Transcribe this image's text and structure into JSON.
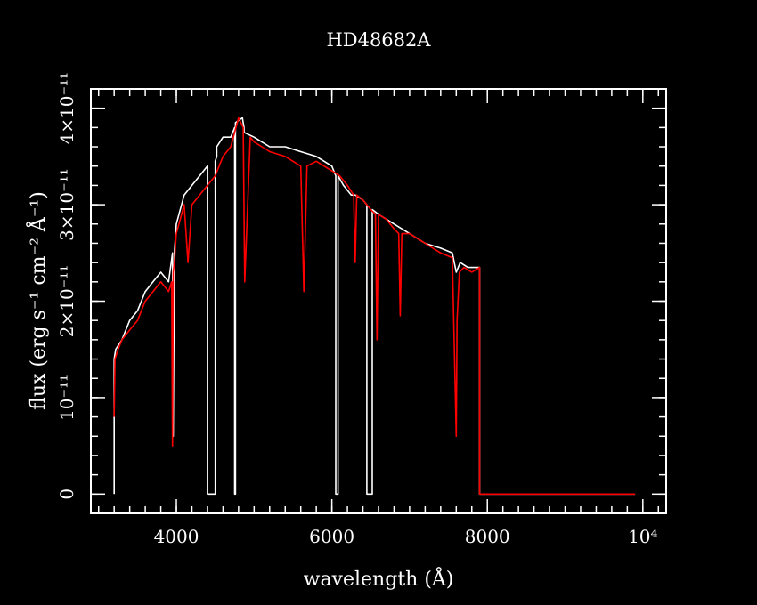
{
  "colors": {
    "background": "#000000",
    "axes": "#ffffff",
    "series_observed": "#ffffff",
    "series_model": "#ff0000"
  },
  "chart_data": {
    "type": "line",
    "title": "HD48682A",
    "xlabel": "wavelength (Å)",
    "ylabel": "flux (erg s⁻¹ cm⁻² Å⁻¹)",
    "xlim": [
      2900,
      10300
    ],
    "ylim": [
      -2e-12,
      4.2e-11
    ],
    "x_ticks": [
      {
        "value": 4000,
        "label": "4000"
      },
      {
        "value": 6000,
        "label": "6000"
      },
      {
        "value": 8000,
        "label": "8000"
      },
      {
        "value": 10000,
        "label": "10⁴"
      }
    ],
    "y_ticks": [
      {
        "value": 0,
        "label": "0"
      },
      {
        "value": 1e-11,
        "label": "10⁻¹¹"
      },
      {
        "value": 2e-11,
        "label": "2×10⁻¹¹"
      },
      {
        "value": 3e-11,
        "label": "3×10⁻¹¹"
      },
      {
        "value": 4e-11,
        "label": "4×10⁻¹¹"
      }
    ],
    "x_minor_step": 200,
    "y_minor_step": 2e-12,
    "grid": false,
    "series": [
      {
        "color": "#ffffff",
        "x": [
          3200,
          3200,
          3220,
          3300,
          3400,
          3500,
          3600,
          3700,
          3800,
          3900,
          3950,
          3960,
          3975,
          4000,
          4100,
          4200,
          4300,
          4400,
          4400,
          4500,
          4500,
          4520,
          4520,
          4600,
          4700,
          4750,
          4750,
          4760,
          4760,
          4850,
          4850,
          4870,
          4870,
          5000,
          5200,
          5400,
          5600,
          5800,
          6000,
          6050,
          6050,
          6080,
          6080,
          6150,
          6250,
          6300,
          6400,
          6450,
          6450,
          6520,
          6520,
          6600,
          6800,
          7000,
          7200,
          7400,
          7550,
          7600,
          7650,
          7750,
          7900,
          7900,
          9900
        ],
        "y": [
          0,
          1.4e-11,
          1.5e-11,
          1.6e-11,
          1.8e-11,
          1.9e-11,
          2.1e-11,
          2.2e-11,
          2.3e-11,
          2.2e-11,
          2.5e-11,
          6e-12,
          2.5e-11,
          2.8e-11,
          3.1e-11,
          3.2e-11,
          3.3e-11,
          3.4e-11,
          0,
          0,
          3.45e-11,
          3.5e-11,
          3.6e-11,
          3.7e-11,
          3.7e-11,
          3.8e-11,
          0,
          0,
          3.85e-11,
          3.9e-11,
          3.9e-11,
          3.8e-11,
          3.75e-11,
          3.7e-11,
          3.6e-11,
          3.6e-11,
          3.55e-11,
          3.5e-11,
          3.4e-11,
          3.3e-11,
          0,
          0,
          3.3e-11,
          3.2e-11,
          3.1e-11,
          3.1e-11,
          3.05e-11,
          3e-11,
          0,
          0,
          2.95e-11,
          2.9e-11,
          2.8e-11,
          2.7e-11,
          2.6e-11,
          2.55e-11,
          2.5e-11,
          2.3e-11,
          2.4e-11,
          2.35e-11,
          2.35e-11,
          0,
          0
        ]
      },
      {
        "color": "#ff0000",
        "x": [
          3200,
          3210,
          3250,
          3300,
          3400,
          3500,
          3600,
          3700,
          3800,
          3900,
          3940,
          3950,
          3960,
          3975,
          4000,
          4100,
          4150,
          4200,
          4300,
          4400,
          4500,
          4600,
          4700,
          4800,
          4860,
          4880,
          4950,
          5000,
          5100,
          5200,
          5400,
          5600,
          5640,
          5680,
          5800,
          6000,
          6100,
          6200,
          6280,
          6300,
          6320,
          6400,
          6500,
          6560,
          6580,
          6600,
          6700,
          6800,
          6860,
          6880,
          6900,
          7000,
          7200,
          7400,
          7550,
          7600,
          7610,
          7640,
          7700,
          7800,
          7900,
          7900,
          9900
        ],
        "y": [
          8e-12,
          1.4e-11,
          1.5e-11,
          1.6e-11,
          1.7e-11,
          1.8e-11,
          2e-11,
          2.1e-11,
          2.2e-11,
          2.1e-11,
          2.2e-11,
          5e-12,
          2.3e-11,
          2.4e-11,
          2.7e-11,
          3e-11,
          2.4e-11,
          3e-11,
          3.1e-11,
          3.2e-11,
          3.3e-11,
          3.5e-11,
          3.6e-11,
          3.9e-11,
          3.8e-11,
          2.2e-11,
          3.7e-11,
          3.65e-11,
          3.6e-11,
          3.55e-11,
          3.5e-11,
          3.4e-11,
          2.1e-11,
          3.4e-11,
          3.45e-11,
          3.35e-11,
          3.3e-11,
          3.2e-11,
          3.1e-11,
          2.4e-11,
          3.1e-11,
          3.05e-11,
          2.95e-11,
          2.9e-11,
          1.6e-11,
          2.9e-11,
          2.85e-11,
          2.75e-11,
          2.7e-11,
          1.85e-11,
          2.7e-11,
          2.7e-11,
          2.6e-11,
          2.5e-11,
          2.45e-11,
          6e-12,
          1.8e-11,
          2.3e-11,
          2.35e-11,
          2.3e-11,
          2.35e-11,
          0,
          0
        ]
      }
    ]
  }
}
